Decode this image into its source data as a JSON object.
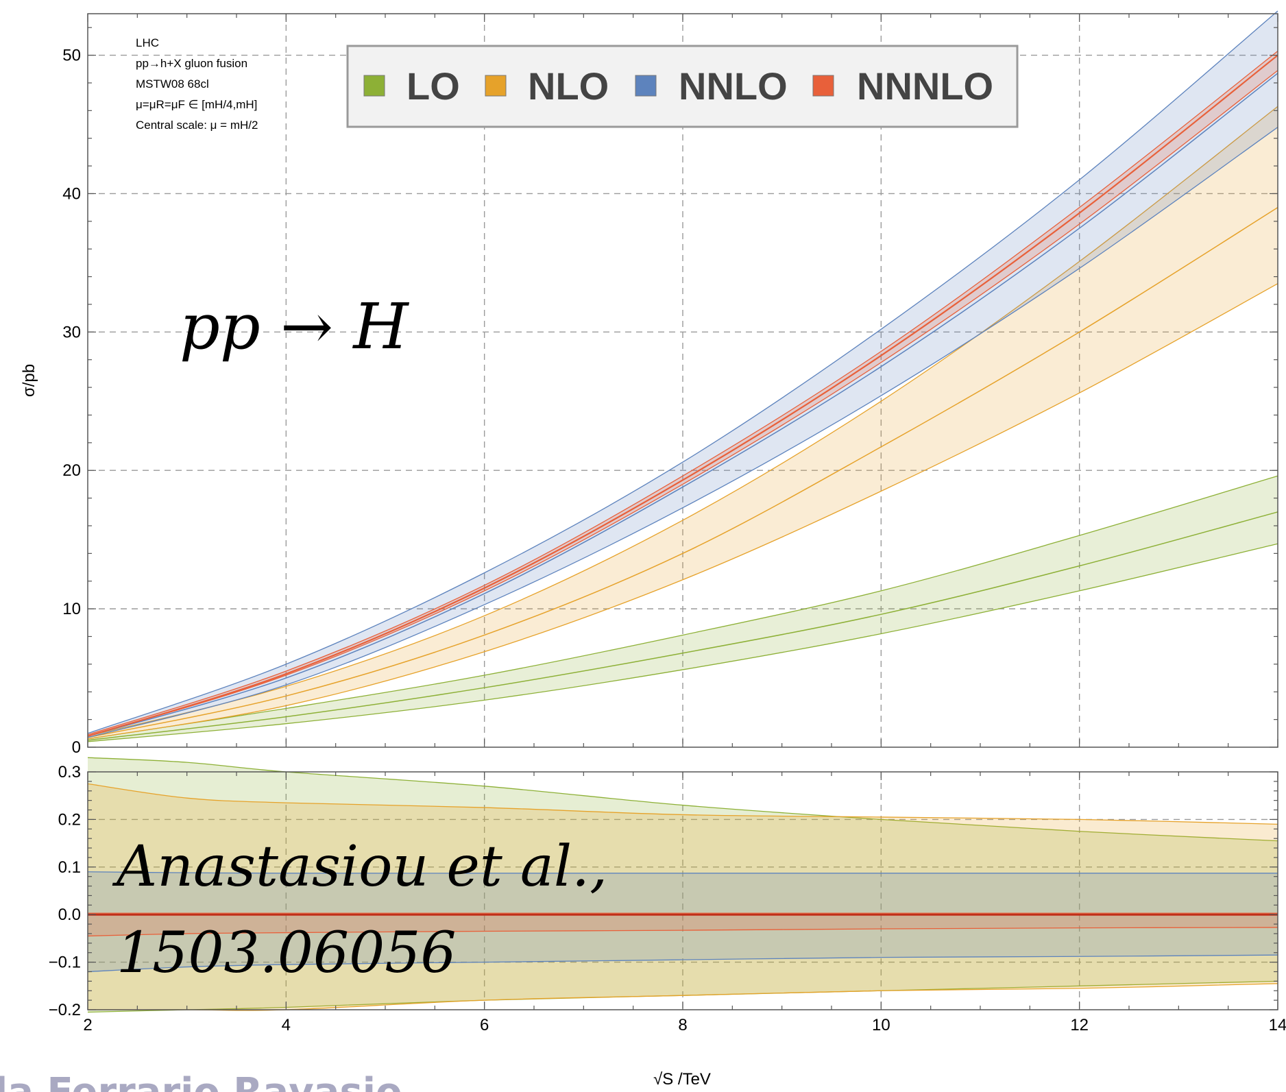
{
  "annotations": {
    "lines": [
      "LHC",
      "pp→h+X gluon fusion",
      "MSTW08 68cl",
      "μ=μR=μF ∈ [mH/4,mH]",
      "Central scale: μ = mH/2"
    ],
    "process": "pp → H",
    "citation_line1": "Anastasiou et al.,",
    "citation_line2": "1503.06056",
    "watermark": "la Ferrario Ravasio"
  },
  "colors": {
    "LO": "#8db036",
    "NLO": "#e6a22a",
    "NNLO": "#5d83bd",
    "NNNLO": "#e8603a"
  },
  "chart_data": [
    {
      "type": "area",
      "xlabel": "√S /TeV",
      "ylabel": "σ/pb",
      "xlim": [
        2,
        14
      ],
      "ylim": [
        0,
        53
      ],
      "xticks": [
        2,
        4,
        6,
        8,
        10,
        12,
        14
      ],
      "yticks": [
        0,
        10,
        20,
        30,
        40,
        50
      ],
      "grid": true,
      "legend": {
        "position": "top",
        "entries": [
          "LO",
          "NLO",
          "NNLO",
          "NNNLO"
        ]
      },
      "x": [
        2,
        4,
        6,
        8,
        10,
        12,
        14
      ],
      "series": [
        {
          "name": "LO",
          "central": [
            0.5,
            2.2,
            4.3,
            6.8,
            9.6,
            13.1,
            17.0
          ],
          "lower": [
            0.4,
            1.7,
            3.4,
            5.6,
            8.2,
            11.3,
            14.7
          ],
          "upper": [
            0.6,
            2.8,
            5.2,
            8.1,
            11.3,
            15.3,
            19.6
          ]
        },
        {
          "name": "NLO",
          "central": [
            0.7,
            3.7,
            8.1,
            14.0,
            21.7,
            30.0,
            39.0
          ],
          "lower": [
            0.6,
            3.0,
            6.9,
            12.1,
            18.5,
            25.6,
            33.5
          ],
          "upper": [
            0.8,
            4.4,
            9.5,
            16.4,
            25.0,
            35.1,
            46.3
          ]
        },
        {
          "name": "NNLO",
          "central": [
            0.8,
            5.0,
            11.1,
            18.8,
            27.5,
            37.5,
            48.7
          ],
          "lower": [
            0.7,
            4.5,
            10.3,
            17.3,
            25.4,
            34.6,
            44.8
          ],
          "upper": [
            1.0,
            6.0,
            12.6,
            20.6,
            30.2,
            41.0,
            53.2
          ]
        },
        {
          "name": "NNNLO",
          "central": [
            0.8,
            5.3,
            11.5,
            19.3,
            28.3,
            38.6,
            50.0
          ],
          "lower": [
            0.8,
            5.2,
            11.3,
            19.0,
            27.8,
            37.8,
            48.9
          ],
          "upper": [
            0.9,
            5.5,
            11.7,
            19.6,
            28.6,
            39.0,
            50.3
          ]
        }
      ]
    },
    {
      "type": "area",
      "xlabel": "",
      "ylabel": "",
      "xlim": [
        2,
        14
      ],
      "ylim": [
        -0.2,
        0.3
      ],
      "xticks": [
        2,
        4,
        6,
        8,
        10,
        12,
        14
      ],
      "yticks": [
        -0.2,
        -0.1,
        0.0,
        0.1,
        0.2,
        0.3
      ],
      "grid": true,
      "x": [
        2,
        3,
        4,
        6,
        8,
        10,
        12,
        14
      ],
      "series": [
        {
          "name": "LO",
          "lower": [
            -0.205,
            -0.2,
            -0.195,
            -0.18,
            -0.17,
            -0.16,
            -0.15,
            -0.14
          ],
          "upper": [
            0.33,
            0.32,
            0.3,
            0.27,
            0.23,
            0.2,
            0.175,
            0.155
          ]
        },
        {
          "name": "NLO",
          "lower": [
            -0.2,
            -0.2,
            -0.2,
            -0.18,
            -0.17,
            -0.16,
            -0.155,
            -0.145
          ],
          "upper": [
            0.275,
            0.245,
            0.235,
            0.225,
            0.21,
            0.205,
            0.2,
            0.19
          ]
        },
        {
          "name": "NNLO",
          "lower": [
            -0.12,
            -0.11,
            -0.105,
            -0.1,
            -0.095,
            -0.09,
            -0.088,
            -0.085
          ],
          "upper": [
            0.09,
            0.088,
            0.087,
            0.087,
            0.087,
            0.087,
            0.087,
            0.087
          ]
        },
        {
          "name": "NNNLO",
          "lower": [
            -0.045,
            -0.04,
            -0.038,
            -0.035,
            -0.033,
            -0.03,
            -0.028,
            -0.027
          ],
          "upper": [
            0.003,
            0.003,
            0.003,
            0.003,
            0.003,
            0.003,
            0.003,
            0.003
          ]
        }
      ]
    }
  ]
}
